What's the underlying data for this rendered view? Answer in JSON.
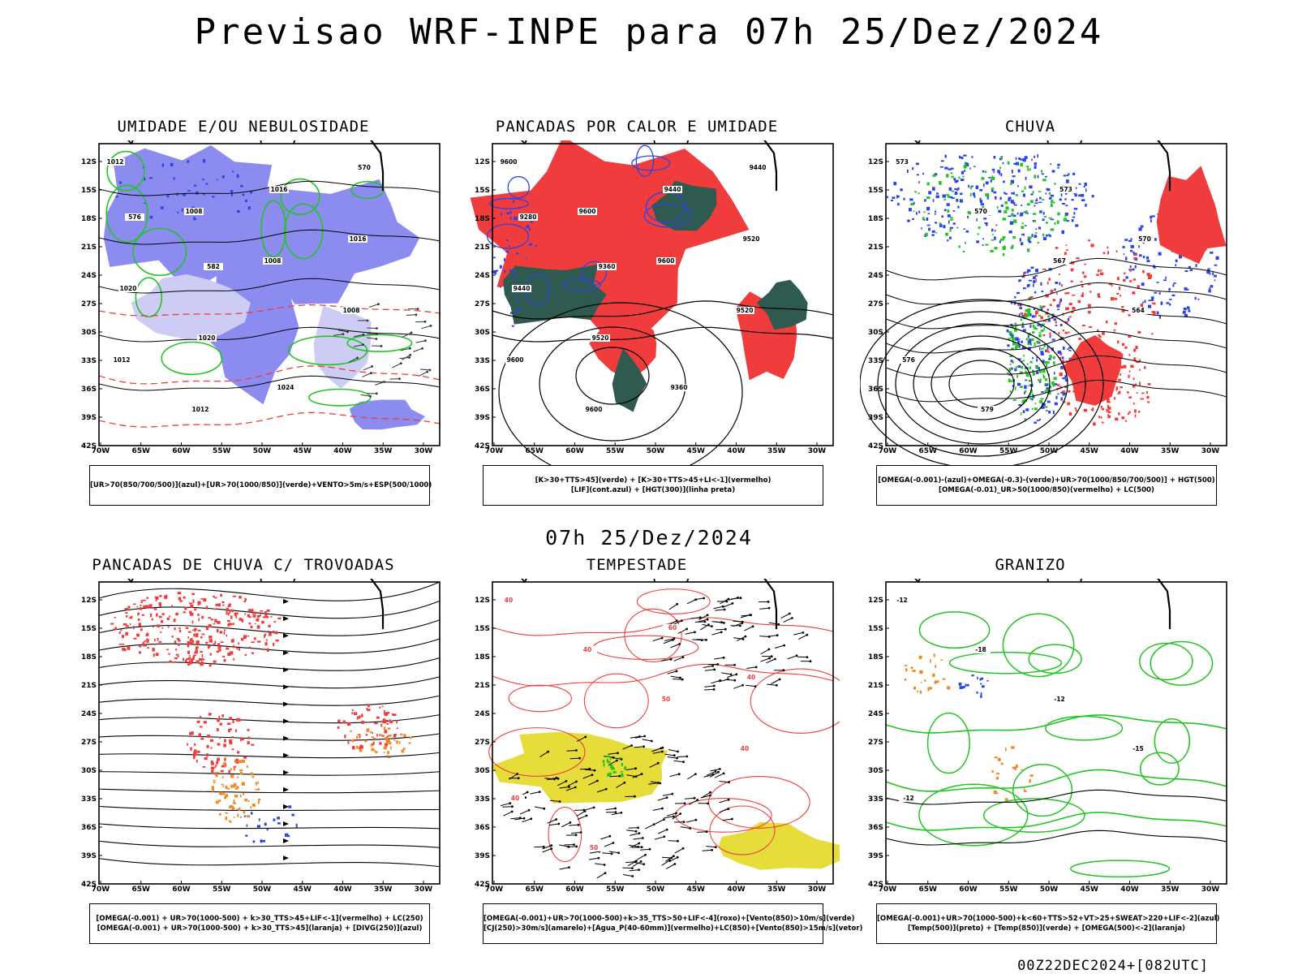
{
  "header": {
    "title": "Previsao WRF-INPE  para 07h 25/Dez/2024",
    "subtitle": "07h 25/Dez/2024",
    "footer": "00Z22DEC2024+[082UTC]"
  },
  "axes": {
    "lat_ticks": [
      "12S",
      "15S",
      "18S",
      "21S",
      "24S",
      "27S",
      "30S",
      "33S",
      "36S",
      "39S",
      "42S"
    ],
    "lon_ticks": [
      "70W",
      "65W",
      "60W",
      "55W",
      "50W",
      "45W",
      "40W",
      "35W",
      "30W"
    ]
  },
  "colors": {
    "red": "#f03c3c",
    "blue": "#2a44e6",
    "green": "#22c422",
    "lavender": "#8c8cf0",
    "dark_teal": "#2e5a50",
    "orange": "#f08a28",
    "yellow": "#e6dc3a"
  },
  "panels": [
    {
      "title": "UMIDADE E/OU NEBULOSIDADE",
      "legend": [
        "[UR>70(850/700/500)](azul)+[UR>70(1000/850)](verde)+VENTO>5m/s+ESP(500/1000)"
      ],
      "contour_labels": [
        "1012",
        "1008",
        "1008",
        "1008",
        "1012",
        "1012",
        "1016",
        "1016",
        "1020",
        "1020",
        "1024",
        "570",
        "576",
        "582"
      ]
    },
    {
      "title": "PANCADAS POR CALOR E UMIDADE",
      "legend": [
        "[K>30+TTS>45](verde) + [K>30+TTS>45+LI<-1](vermelho)",
        "[LIF](cont.azul) + [HGT(300)](linha preta)"
      ],
      "contour_labels": [
        "9600",
        "9600",
        "9600",
        "9520",
        "9600",
        "9600",
        "9440",
        "9520",
        "9440",
        "9520",
        "9360",
        "9440",
        "9280",
        "9360"
      ]
    },
    {
      "title": "CHUVA",
      "legend": [
        "[OMEGA(-0.001)-(azul)+OMEGA(-0.3)-(verde)+UR>70(1000/850/700/500)] + HGT(500)",
        "[OMEGA(-0.01)_UR>50(1000/850)(vermelho) + LC(500)"
      ],
      "contour_labels": [
        "573",
        "570",
        "567",
        "564",
        "576",
        "579",
        "573",
        "570"
      ]
    },
    {
      "title": "PANCADAS DE CHUVA C/ TROVOADAS",
      "legend": [
        "[OMEGA(-0.001) + UR>70(1000-500) + k>30_TTS>45+LIF<-1](vermelho) + LC(250)",
        "[OMEGA(-0.001) + UR>70(1000-500) + k>30_TTS>45](laranja) + [DIVG(250)](azul)"
      ],
      "contour_labels": []
    },
    {
      "title": "TEMPESTADE",
      "legend": [
        "[OMEGA(-0.001)+UR>70(1000-500)+k>35_TTS>50+LIF<-4](roxo)+[Vento(850)>10m/s](verde)",
        "[CJ(250)>30m/s](amarelo)+[Agua_P(40-60mm)](vermelho)+LC(850)+[Vento(850)>15m/s](vetor)"
      ],
      "contour_labels": [
        "40",
        "40",
        "50",
        "40",
        "40",
        "50",
        "60",
        "40"
      ]
    },
    {
      "title": "GRANIZO",
      "legend": [
        "[OMEGA(-0.001)+UR>70(1000-500)+k<60+TTS>52+VT>25+SWEAT>220+LIF<-2](azul)",
        "[Temp(500)](preto) + [Temp(850)](verde) + [OMEGA(500)<-2](laranja)"
      ],
      "contour_labels": [
        "-12",
        "-18",
        "-12",
        "-15",
        "-12"
      ]
    }
  ]
}
